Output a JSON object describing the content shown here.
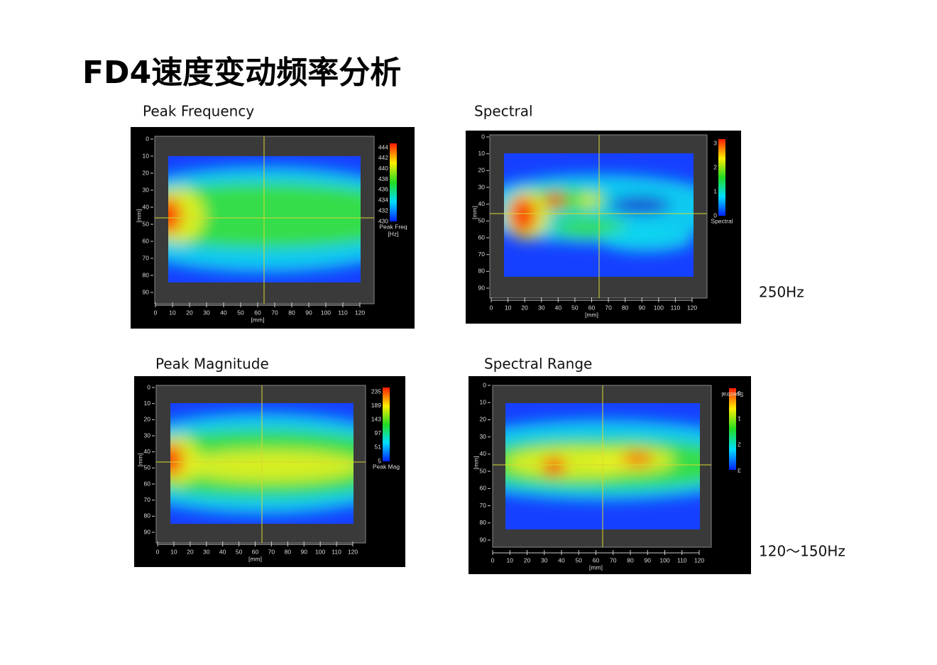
{
  "title": "FD4速度变动频率分析",
  "panels": [
    {
      "caption": "Peak Frequency",
      "x_ticks": [
        0,
        10,
        20,
        30,
        40,
        50,
        60,
        70,
        80,
        90,
        100,
        110,
        120
      ],
      "y_ticks": [
        0,
        10,
        20,
        30,
        40,
        50,
        60,
        70,
        80,
        90
      ],
      "x_label": "[mm]",
      "y_label": "[mm]",
      "colorbar_ticks": [
        444,
        442,
        440,
        438,
        436,
        434,
        432,
        430
      ],
      "colorbar_label": [
        "Peak Freq",
        "[Hz]"
      ]
    },
    {
      "caption": "Spectral",
      "x_ticks": [
        0,
        10,
        20,
        30,
        40,
        50,
        60,
        70,
        80,
        90,
        100,
        110,
        120
      ],
      "y_ticks": [
        0,
        10,
        20,
        30,
        40,
        50,
        60,
        70,
        80,
        90
      ],
      "x_label": "[mm]",
      "y_label": "[mm]",
      "colorbar_ticks": [
        3,
        2,
        1,
        0
      ],
      "colorbar_label": [
        "Spectral"
      ]
    },
    {
      "caption": "Peak Magnitude",
      "x_ticks": [
        0,
        10,
        20,
        30,
        40,
        50,
        60,
        70,
        80,
        90,
        100,
        110,
        120
      ],
      "y_ticks": [
        0,
        10,
        20,
        30,
        40,
        50,
        60,
        70,
        80,
        90
      ],
      "x_label": "[mm]",
      "y_label": "[mm]",
      "colorbar_ticks": [
        235,
        189,
        143,
        97,
        51,
        5
      ],
      "colorbar_label": [
        "Peak Mag"
      ]
    },
    {
      "caption": "Spectral Range",
      "x_ticks": [
        0,
        10,
        20,
        30,
        40,
        50,
        60,
        70,
        80,
        90,
        100,
        110,
        120
      ],
      "y_ticks": [
        0,
        10,
        20,
        30,
        40,
        50,
        60,
        70,
        80,
        90
      ],
      "x_label": "[mm]",
      "y_label": "[mm]",
      "colorbar_ticks": [
        3,
        2,
        1,
        0
      ],
      "colorbar_label": [
        "Spectral"
      ]
    }
  ],
  "notes": [
    "250Hz",
    "120～150Hz"
  ]
}
